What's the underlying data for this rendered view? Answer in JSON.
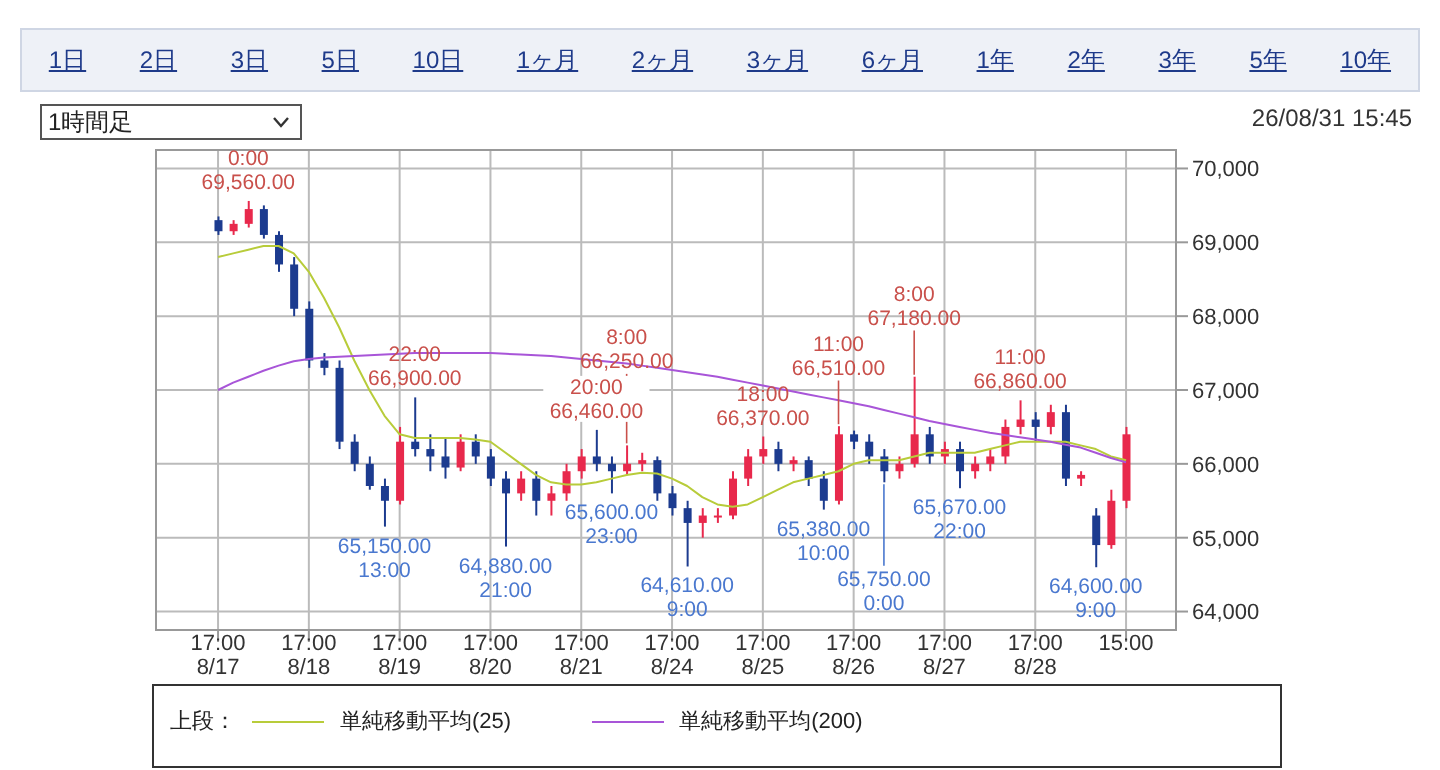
{
  "chart_data": {
    "type": "candlestick",
    "categories": [
      "17:00\n8/17",
      null,
      null,
      null,
      null,
      null,
      "17:00\n8/18",
      null,
      null,
      null,
      null,
      null,
      "17:00\n8/19",
      null,
      null,
      null,
      null,
      null,
      "17:00\n8/20",
      null,
      null,
      null,
      null,
      null,
      "17:00\n8/21",
      null,
      null,
      null,
      null,
      null,
      "17:00\n8/24",
      null,
      null,
      null,
      null,
      null,
      "17:00\n8/25",
      null,
      null,
      null,
      null,
      null,
      "17:00\n8/26",
      null,
      null,
      null,
      null,
      null,
      "17:00\n8/27",
      null,
      null,
      null,
      null,
      null,
      "17:00\n8/28",
      null,
      null,
      null,
      null,
      null,
      "15:00"
    ],
    "ohlc": [
      [
        69300,
        69350,
        69100,
        69150
      ],
      [
        69150,
        69300,
        69100,
        69250
      ],
      [
        69250,
        69560,
        69200,
        69450
      ],
      [
        69450,
        69500,
        69050,
        69100
      ],
      [
        69100,
        69150,
        68600,
        68700
      ],
      [
        68700,
        68800,
        68000,
        68100
      ],
      [
        68100,
        68200,
        67300,
        67400
      ],
      [
        67400,
        67500,
        67200,
        67300
      ],
      [
        67300,
        67400,
        66200,
        66300
      ],
      [
        66300,
        66400,
        65900,
        66000
      ],
      [
        66000,
        66100,
        65650,
        65700
      ],
      [
        65700,
        65800,
        65150,
        65500
      ],
      [
        65500,
        66500,
        65450,
        66300
      ],
      [
        66300,
        66900,
        66100,
        66200
      ],
      [
        66200,
        66400,
        65900,
        66100
      ],
      [
        66100,
        66350,
        65800,
        65950
      ],
      [
        65950,
        66400,
        65900,
        66300
      ],
      [
        66300,
        66400,
        66000,
        66100
      ],
      [
        66100,
        66200,
        65700,
        65800
      ],
      [
        65800,
        65900,
        64880,
        65600
      ],
      [
        65600,
        65900,
        65500,
        65800
      ],
      [
        65800,
        65900,
        65300,
        65500
      ],
      [
        65500,
        65700,
        65300,
        65600
      ],
      [
        65600,
        66000,
        65500,
        65900
      ],
      [
        65900,
        66200,
        65800,
        66100
      ],
      [
        66100,
        66460,
        65900,
        66000
      ],
      [
        66000,
        66100,
        65600,
        65900
      ],
      [
        65900,
        66250,
        65850,
        66000
      ],
      [
        66000,
        66150,
        65900,
        66050
      ],
      [
        66050,
        66100,
        65500,
        65600
      ],
      [
        65600,
        65700,
        65300,
        65400
      ],
      [
        65400,
        65500,
        64610,
        65200
      ],
      [
        65200,
        65400,
        65000,
        65300
      ],
      [
        65300,
        65400,
        65200,
        65300
      ],
      [
        65300,
        65900,
        65250,
        65800
      ],
      [
        65800,
        66200,
        65700,
        66100
      ],
      [
        66100,
        66370,
        66000,
        66200
      ],
      [
        66200,
        66300,
        65900,
        66000
      ],
      [
        66000,
        66100,
        65900,
        66050
      ],
      [
        66050,
        66100,
        65700,
        65800
      ],
      [
        65800,
        65900,
        65380,
        65500
      ],
      [
        65500,
        66510,
        65450,
        66400
      ],
      [
        66400,
        66450,
        66200,
        66300
      ],
      [
        66300,
        66400,
        66000,
        66100
      ],
      [
        66100,
        66200,
        65750,
        65900
      ],
      [
        65900,
        66100,
        65800,
        66000
      ],
      [
        66000,
        67180,
        65950,
        66400
      ],
      [
        66400,
        66500,
        66000,
        66100
      ],
      [
        66100,
        66300,
        66000,
        66200
      ],
      [
        66200,
        66300,
        65670,
        65900
      ],
      [
        65900,
        66100,
        65800,
        66000
      ],
      [
        66000,
        66200,
        65900,
        66100
      ],
      [
        66100,
        66600,
        66000,
        66500
      ],
      [
        66500,
        66860,
        66400,
        66600
      ],
      [
        66600,
        66700,
        66300,
        66500
      ],
      [
        66500,
        66800,
        66400,
        66700
      ],
      [
        66700,
        66800,
        65700,
        65800
      ],
      [
        65800,
        65900,
        65700,
        65850
      ],
      [
        65300,
        65400,
        64600,
        64900
      ],
      [
        64900,
        65650,
        64850,
        65500
      ],
      [
        65500,
        66500,
        65400,
        66400
      ]
    ],
    "colors": [
      "#1c3b8f",
      "#e8294c",
      "#e8294c",
      "#1c3b8f",
      "#1c3b8f",
      "#1c3b8f",
      "#1c3b8f",
      "#1c3b8f",
      "#1c3b8f",
      "#1c3b8f",
      "#1c3b8f",
      "#1c3b8f",
      "#e8294c",
      "#1c3b8f",
      "#1c3b8f",
      "#1c3b8f",
      "#e8294c",
      "#1c3b8f",
      "#1c3b8f",
      "#1c3b8f",
      "#e8294c",
      "#1c3b8f",
      "#e8294c",
      "#e8294c",
      "#e8294c",
      "#1c3b8f",
      "#1c3b8f",
      "#e8294c",
      "#e8294c",
      "#1c3b8f",
      "#1c3b8f",
      "#1c3b8f",
      "#e8294c",
      "#e8294c",
      "#e8294c",
      "#e8294c",
      "#e8294c",
      "#1c3b8f",
      "#e8294c",
      "#1c3b8f",
      "#1c3b8f",
      "#e8294c",
      "#1c3b8f",
      "#1c3b8f",
      "#1c3b8f",
      "#e8294c",
      "#e8294c",
      "#1c3b8f",
      "#e8294c",
      "#1c3b8f",
      "#e8294c",
      "#e8294c",
      "#e8294c",
      "#e8294c",
      "#1c3b8f",
      "#e8294c",
      "#1c3b8f",
      "#e8294c",
      "#1c3b8f",
      "#e8294c",
      "#e8294c"
    ],
    "series": [
      {
        "type": "line",
        "name": "単純移動平均(25)",
        "color": "#b8cc3a",
        "values": [
          68800,
          68850,
          68900,
          68950,
          68950,
          68850,
          68600,
          68250,
          67850,
          67400,
          67000,
          66650,
          66400,
          66350,
          66350,
          66350,
          66350,
          66330,
          66300,
          66150,
          66000,
          65850,
          65750,
          65720,
          65720,
          65750,
          65800,
          65850,
          65880,
          65870,
          65800,
          65700,
          65550,
          65450,
          65420,
          65450,
          65550,
          65650,
          65750,
          65800,
          65850,
          65900,
          66000,
          66050,
          66050,
          66050,
          66100,
          66150,
          66150,
          66150,
          66150,
          66200,
          66250,
          66300,
          66300,
          66300,
          66300,
          66250,
          66200,
          66100,
          66050
        ]
      },
      {
        "type": "line",
        "name": "単純移動平均(200)",
        "color": "#a855d8",
        "values": [
          67000,
          67100,
          67180,
          67260,
          67330,
          67390,
          67420,
          67440,
          67450,
          67460,
          67470,
          67480,
          67490,
          67500,
          67500,
          67500,
          67500,
          67500,
          67500,
          67490,
          67480,
          67470,
          67460,
          67440,
          67420,
          67400,
          67380,
          67360,
          67330,
          67300,
          67270,
          67240,
          67210,
          67180,
          67140,
          67100,
          67060,
          67020,
          66980,
          66940,
          66900,
          66860,
          66820,
          66780,
          66730,
          66680,
          66630,
          66580,
          66540,
          66500,
          66460,
          66420,
          66390,
          66360,
          66330,
          66300,
          66260,
          66220,
          66150,
          66080,
          66020
        ]
      }
    ],
    "ylim": [
      63750,
      70250
    ],
    "yticks": [
      {
        "value": 64000,
        "label": "64,000"
      },
      {
        "value": 65000,
        "label": "65,000"
      },
      {
        "value": 66000,
        "label": "66,000"
      },
      {
        "value": 67000,
        "label": "67,000"
      },
      {
        "value": 68000,
        "label": "68,000"
      },
      {
        "value": 69000,
        "label": "69,000"
      },
      {
        "value": 70000,
        "label": "70,000"
      }
    ],
    "grid": true,
    "legend": "bottom",
    "legend_title": "上段：",
    "annotations": [
      "1日",
      "2日",
      "3日",
      "5日",
      "10日",
      "1ヶ月",
      "2ヶ月",
      "3ヶ月",
      "6ヶ月",
      "1年",
      "2年",
      "3年",
      "5年",
      "10年",
      "1時間足",
      "26/08/31 15:45",
      {
        "text": "0:00\n69,560.00",
        "y": 69560
      },
      {
        "text": "22:00\n66,900.00",
        "y": 66900
      },
      {
        "text": "20:00\n66,460.00",
        "y": 66460
      },
      {
        "text": "8:00\n66,250.00",
        "y": 66250
      },
      {
        "text": "18:00\n66,370.00",
        "y": 66370
      },
      {
        "text": "11:00\n66,510.00",
        "y": 66510
      },
      {
        "text": "8:00\n67,180.00",
        "y": 67180
      },
      {
        "text": "11:00\n66,860.00",
        "y": 66860
      },
      {
        "text": "65,150.00\n13:00",
        "y": 65150
      },
      {
        "text": "64,880.00\n21:00",
        "y": 64880
      },
      {
        "text": "65,600.00\n23:00",
        "y": 65600
      },
      {
        "text": "64,610.00\n9:00",
        "y": 64610
      },
      {
        "text": "65,380.00\n10:00",
        "y": 65380
      },
      {
        "text": "65,750.00\n0:00",
        "y": 65750
      },
      {
        "text": "65,670.00\n22:00",
        "y": 65670
      },
      {
        "text": "64,600.00\n9:00",
        "y": 64600
      }
    ]
  }
}
